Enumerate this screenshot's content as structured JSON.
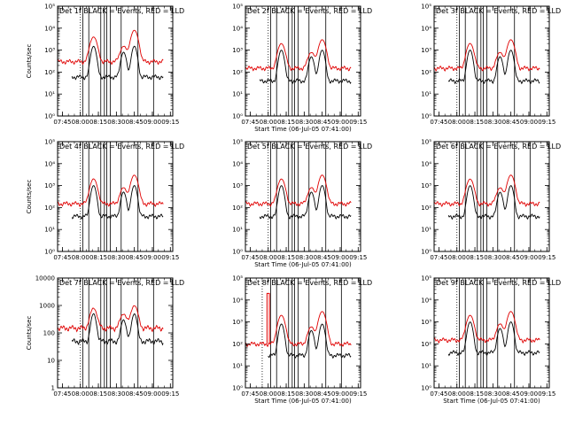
{
  "chart_data": [
    {
      "type": "line",
      "title": "Det 1f BLACK = Events, RED = LLD",
      "xlabel": "",
      "ylabel": "Counts/sec",
      "xlim": [
        "07:41",
        "09:17"
      ],
      "ylim": [
        1,
        100000
      ],
      "yscale": "log",
      "yticks": [
        "10⁰",
        "10¹",
        "10²",
        "10³",
        "10⁴",
        "10⁵"
      ],
      "xticks": [
        "07:45",
        "08:00",
        "08:15",
        "08:30",
        "08:45",
        "09:00",
        "09:15"
      ],
      "black_start": "07:53",
      "black_end": "09:09",
      "red_base": 300,
      "black_base": 60,
      "peaks": [
        {
          "t": "08:11",
          "red": 4000,
          "black": 1500
        },
        {
          "t": "08:36",
          "red": 1500,
          "black": 800
        },
        {
          "t": "08:45",
          "red": 8000,
          "black": 1500
        }
      ],
      "interval_lines": [
        "08:02",
        "08:07",
        "08:17",
        "08:20",
        "08:22",
        "08:25",
        "08:34",
        "08:48",
        "09:01"
      ],
      "dotted_line": "08:00",
      "series": [
        {
          "name": "Events",
          "color": "#000000"
        },
        {
          "name": "LLD",
          "color": "#e00000"
        }
      ]
    },
    {
      "type": "line",
      "title": "Det 2f BLACK = Events, RED = LLD",
      "xlabel": "Start Time (06-Jul-05 07:41:00)",
      "ylabel": "",
      "xlim": [
        "07:41",
        "09:17"
      ],
      "ylim": [
        1,
        100000
      ],
      "yscale": "log",
      "yticks": [
        "10⁰",
        "10¹",
        "10²",
        "10³",
        "10⁴",
        "10⁵"
      ],
      "xticks": [
        "07:45",
        "08:00",
        "08:15",
        "08:30",
        "08:45",
        "09:00",
        "09:15"
      ],
      "black_start": "07:53",
      "black_end": "09:09",
      "red_base": 150,
      "black_base": 40,
      "peaks": [
        {
          "t": "08:11",
          "red": 2000,
          "black": 1000
        },
        {
          "t": "08:36",
          "red": 800,
          "black": 500
        },
        {
          "t": "08:45",
          "red": 3000,
          "black": 1000
        }
      ],
      "interval_lines": [
        "08:02",
        "08:07",
        "08:17",
        "08:20",
        "08:22",
        "08:25",
        "08:34",
        "08:48",
        "09:01"
      ],
      "dotted_line": "08:00",
      "series": [
        {
          "name": "Events",
          "color": "#000000"
        },
        {
          "name": "LLD",
          "color": "#e00000"
        }
      ]
    },
    {
      "type": "line",
      "title": "Det 3f BLACK = Events, RED = LLD",
      "xlabel": "",
      "ylabel": "",
      "xlim": [
        "07:41",
        "09:17"
      ],
      "ylim": [
        1,
        100000
      ],
      "yscale": "log",
      "yticks": [
        "10⁰",
        "10¹",
        "10²",
        "10³",
        "10⁴",
        "10⁵"
      ],
      "xticks": [
        "07:45",
        "08:00",
        "08:15",
        "08:30",
        "08:45",
        "09:00",
        "09:15"
      ],
      "black_start": "07:53",
      "black_end": "09:09",
      "red_base": 150,
      "black_base": 40,
      "peaks": [
        {
          "t": "08:11",
          "red": 2000,
          "black": 1000
        },
        {
          "t": "08:36",
          "red": 800,
          "black": 500
        },
        {
          "t": "08:45",
          "red": 3000,
          "black": 1000
        }
      ],
      "interval_lines": [
        "08:02",
        "08:07",
        "08:17",
        "08:20",
        "08:22",
        "08:25",
        "08:34",
        "08:48",
        "09:01"
      ],
      "dotted_line": "08:00",
      "series": [
        {
          "name": "Events",
          "color": "#000000"
        },
        {
          "name": "LLD",
          "color": "#e00000"
        }
      ]
    },
    {
      "type": "line",
      "title": "Det 4f BLACK = Events, RED = LLD",
      "xlabel": "",
      "ylabel": "Counts/sec",
      "xlim": [
        "07:41",
        "09:17"
      ],
      "ylim": [
        1,
        100000
      ],
      "yscale": "log",
      "yticks": [
        "10⁰",
        "10¹",
        "10²",
        "10³",
        "10⁴",
        "10⁵"
      ],
      "xticks": [
        "07:45",
        "08:00",
        "08:15",
        "08:30",
        "08:45",
        "09:00",
        "09:15"
      ],
      "black_start": "07:53",
      "black_end": "09:09",
      "red_base": 150,
      "black_base": 40,
      "peaks": [
        {
          "t": "08:11",
          "red": 2000,
          "black": 1000
        },
        {
          "t": "08:36",
          "red": 800,
          "black": 500
        },
        {
          "t": "08:45",
          "red": 3000,
          "black": 1000
        }
      ],
      "interval_lines": [
        "08:02",
        "08:07",
        "08:17",
        "08:20",
        "08:22",
        "08:25",
        "08:34",
        "08:48",
        "09:01"
      ],
      "dotted_line": "08:00",
      "series": [
        {
          "name": "Events",
          "color": "#000000"
        },
        {
          "name": "LLD",
          "color": "#e00000"
        }
      ]
    },
    {
      "type": "line",
      "title": "Det 5f BLACK = Events, RED = LLD",
      "xlabel": "Start Time (06-Jul-05 07:41:00)",
      "ylabel": "",
      "xlim": [
        "07:41",
        "09:17"
      ],
      "ylim": [
        1,
        100000
      ],
      "yscale": "log",
      "yticks": [
        "10⁰",
        "10¹",
        "10²",
        "10³",
        "10⁴",
        "10⁵"
      ],
      "xticks": [
        "07:45",
        "08:00",
        "08:15",
        "08:30",
        "08:45",
        "09:00",
        "09:15"
      ],
      "black_start": "07:53",
      "black_end": "09:09",
      "red_base": 150,
      "black_base": 40,
      "peaks": [
        {
          "t": "08:11",
          "red": 2000,
          "black": 1000
        },
        {
          "t": "08:36",
          "red": 800,
          "black": 500
        },
        {
          "t": "08:45",
          "red": 3000,
          "black": 1000
        }
      ],
      "interval_lines": [
        "08:02",
        "08:07",
        "08:17",
        "08:20",
        "08:22",
        "08:25",
        "08:34",
        "08:48",
        "09:01"
      ],
      "dotted_line": "08:00",
      "series": [
        {
          "name": "Events",
          "color": "#000000"
        },
        {
          "name": "LLD",
          "color": "#e00000"
        }
      ]
    },
    {
      "type": "line",
      "title": "Det 6f BLACK = Events, RED = LLD",
      "xlabel": "",
      "ylabel": "",
      "xlim": [
        "07:41",
        "09:17"
      ],
      "ylim": [
        1,
        100000
      ],
      "yscale": "log",
      "yticks": [
        "10⁰",
        "10¹",
        "10²",
        "10³",
        "10⁴",
        "10⁵"
      ],
      "xticks": [
        "07:45",
        "08:00",
        "08:15",
        "08:30",
        "08:45",
        "09:00",
        "09:15"
      ],
      "black_start": "07:53",
      "black_end": "09:09",
      "red_base": 150,
      "black_base": 40,
      "peaks": [
        {
          "t": "08:11",
          "red": 2000,
          "black": 1000
        },
        {
          "t": "08:36",
          "red": 800,
          "black": 500
        },
        {
          "t": "08:45",
          "red": 3000,
          "black": 1000
        }
      ],
      "interval_lines": [
        "08:02",
        "08:07",
        "08:17",
        "08:20",
        "08:22",
        "08:25",
        "08:34",
        "08:48",
        "09:01"
      ],
      "dotted_line": "08:00",
      "series": [
        {
          "name": "Events",
          "color": "#000000"
        },
        {
          "name": "LLD",
          "color": "#e00000"
        }
      ]
    },
    {
      "type": "line",
      "title": "Det 7f BLACK = Events, RED = LLD",
      "xlabel": "",
      "ylabel": "Counts/sec",
      "xlim": [
        "07:41",
        "09:17"
      ],
      "ylim": [
        1,
        10000
      ],
      "yscale": "log",
      "yticks": [
        "1",
        "10",
        "100",
        "1000",
        "10000"
      ],
      "xticks": [
        "07:45",
        "08:00",
        "08:15",
        "08:30",
        "08:45",
        "09:00",
        "09:15"
      ],
      "black_start": "07:53",
      "black_end": "09:09",
      "red_base": 150,
      "black_base": 50,
      "peaks": [
        {
          "t": "08:11",
          "red": 800,
          "black": 500
        },
        {
          "t": "08:36",
          "red": 500,
          "black": 300
        },
        {
          "t": "08:45",
          "red": 1000,
          "black": 500
        }
      ],
      "interval_lines": [
        "08:02",
        "08:07",
        "08:17",
        "08:20",
        "08:22",
        "08:25",
        "08:34",
        "08:48",
        "09:01"
      ],
      "dotted_line": "08:00",
      "series": [
        {
          "name": "Events",
          "color": "#000000"
        },
        {
          "name": "LLD",
          "color": "#e00000"
        }
      ]
    },
    {
      "type": "line",
      "title": "Det 8f BLACK = Events, RED = LLD",
      "xlabel": "Start Time (06-Jul-05 07:41:00)",
      "ylabel": "",
      "xlim": [
        "07:41",
        "09:17"
      ],
      "ylim": [
        1,
        100000
      ],
      "yscale": "log",
      "yticks": [
        "10⁰",
        "10¹",
        "10²",
        "10³",
        "10⁴",
        "10⁵"
      ],
      "xticks": [
        "07:45",
        "08:00",
        "08:15",
        "08:30",
        "08:45",
        "09:00",
        "09:15"
      ],
      "black_start": "08:00",
      "black_end": "09:09",
      "red_base": 100,
      "black_base": 30,
      "peaks": [
        {
          "t": "08:11",
          "red": 2000,
          "black": 800
        },
        {
          "t": "08:36",
          "red": 600,
          "black": 400
        },
        {
          "t": "08:45",
          "red": 3000,
          "black": 800
        }
      ],
      "interval_lines": [
        "08:02",
        "08:07",
        "08:17",
        "08:20",
        "08:22",
        "08:25",
        "08:34",
        "08:48",
        "09:01"
      ],
      "dotted_line": "07:55",
      "box_spike": {
        "start": "07:59",
        "end": "08:01",
        "value": 20000
      },
      "series": [
        {
          "name": "Events",
          "color": "#000000"
        },
        {
          "name": "LLD",
          "color": "#e00000"
        }
      ]
    },
    {
      "type": "line",
      "title": "Det 9f BLACK = Events, RED = LLD",
      "xlabel": "Start Time (06-Jul-05 07:41:00)",
      "ylabel": "",
      "xlim": [
        "07:41",
        "09:17"
      ],
      "ylim": [
        1,
        100000
      ],
      "yscale": "log",
      "yticks": [
        "10⁰",
        "10¹",
        "10²",
        "10³",
        "10⁴",
        "10⁵"
      ],
      "xticks": [
        "07:45",
        "08:00",
        "08:15",
        "08:30",
        "08:45",
        "09:00",
        "09:15"
      ],
      "black_start": "07:53",
      "black_end": "09:09",
      "red_base": 150,
      "black_base": 40,
      "peaks": [
        {
          "t": "08:11",
          "red": 2000,
          "black": 1000
        },
        {
          "t": "08:36",
          "red": 800,
          "black": 500
        },
        {
          "t": "08:45",
          "red": 3000,
          "black": 1000
        }
      ],
      "interval_lines": [
        "08:02",
        "08:07",
        "08:17",
        "08:20",
        "08:22",
        "08:25",
        "08:34",
        "08:48",
        "09:01"
      ],
      "dotted_line": "08:00",
      "series": [
        {
          "name": "Events",
          "color": "#000000"
        },
        {
          "name": "LLD",
          "color": "#e00000"
        }
      ]
    }
  ]
}
